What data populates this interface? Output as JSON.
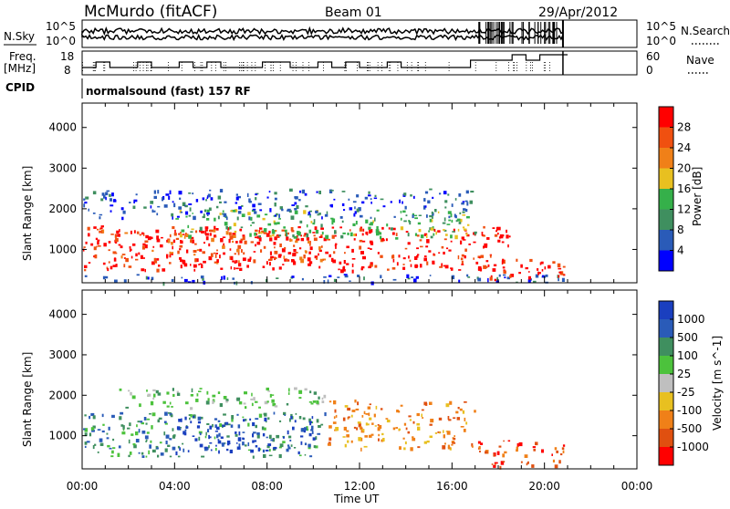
{
  "header": {
    "station": "McMurdo (fitACF)",
    "beam": "Beam 01",
    "date": "29/Apr/2012",
    "nsky_label": "N.Sky",
    "nsky_ticks": [
      "10^5",
      "10^0"
    ],
    "nsearch_label": "N.Search",
    "nsearch_ticks": [
      "10^5",
      "10^0"
    ],
    "freq_label": "Freq.",
    "freq_unit": "[MHz]",
    "freq_ticks": [
      "18",
      "8"
    ],
    "nave_label": "Nave",
    "nave_ticks": [
      "60",
      "0"
    ],
    "cpid_label": "CPID",
    "cpid_value": "normalsound (fast) 157 RF"
  },
  "colors": {
    "power_scale": [
      "#0000ff",
      "#2a5bb8",
      "#3f8f5f",
      "#35b04a",
      "#e8c020",
      "#f08018",
      "#f05010",
      "#ff0000"
    ],
    "velocity_scale": [
      "#1a3fbf",
      "#2a5bb8",
      "#3f8f5f",
      "#4cc23c",
      "#bfbfbf",
      "#e8c020",
      "#f08018",
      "#e05010",
      "#ff0000"
    ]
  },
  "chart_data": [
    {
      "type": "heatmap",
      "name": "power",
      "ylabel": "Slant Range [km]",
      "yticks": [
        "1000",
        "2000",
        "3000",
        "4000"
      ],
      "ylim": [
        180,
        4600
      ],
      "xlim": [
        0,
        24
      ],
      "colorbar_label": "Power [dB]",
      "colorbar_ticks": [
        "4",
        "8",
        "12",
        "16",
        "20",
        "24",
        "28"
      ],
      "colorbar_range": [
        0,
        32
      ],
      "scatter_bands": [
        {
          "x": [
            0.0,
            18.5
          ],
          "y": [
            500,
            1600
          ],
          "level": 7
        },
        {
          "x": [
            0.5,
            10.5
          ],
          "y": [
            700,
            1500
          ],
          "level": 6
        },
        {
          "x": [
            4.0,
            17.0
          ],
          "y": [
            1300,
            2000
          ],
          "level": 3
        },
        {
          "x": [
            0.0,
            17.0
          ],
          "y": [
            1800,
            2500
          ],
          "level": 1
        },
        {
          "x": [
            0.0,
            20.8
          ],
          "y": [
            200,
            400
          ],
          "level": 1
        },
        {
          "x": [
            17.0,
            20.8
          ],
          "y": [
            250,
            800
          ],
          "level": 7
        }
      ]
    },
    {
      "type": "heatmap",
      "name": "velocity",
      "ylabel": "Slant Range [km]",
      "yticks": [
        "1000",
        "2000",
        "3000",
        "4000"
      ],
      "ylim": [
        180,
        4600
      ],
      "xlim": [
        0,
        24
      ],
      "xlabel": "Time UT",
      "xticks": [
        "00:00",
        "04:00",
        "08:00",
        "12:00",
        "16:00",
        "20:00",
        "00:00"
      ],
      "colorbar_label": "Velocity [m s^-1]",
      "colorbar_ticks": [
        "1000",
        "500",
        "100",
        "25",
        "-25",
        "-100",
        "-500",
        "-1000"
      ],
      "scatter_bands": [
        {
          "x": [
            0.0,
            10.5
          ],
          "y": [
            500,
            1600
          ],
          "level": 2
        },
        {
          "x": [
            4.0,
            10.0
          ],
          "y": [
            600,
            1500
          ],
          "level": 0
        },
        {
          "x": [
            10.5,
            17.0
          ],
          "y": [
            700,
            1900
          ],
          "level": 6
        },
        {
          "x": [
            1.5,
            10.5
          ],
          "y": [
            1700,
            2200
          ],
          "level": 3
        },
        {
          "x": [
            17.0,
            20.8
          ],
          "y": [
            250,
            900
          ],
          "level": 7
        }
      ]
    }
  ]
}
